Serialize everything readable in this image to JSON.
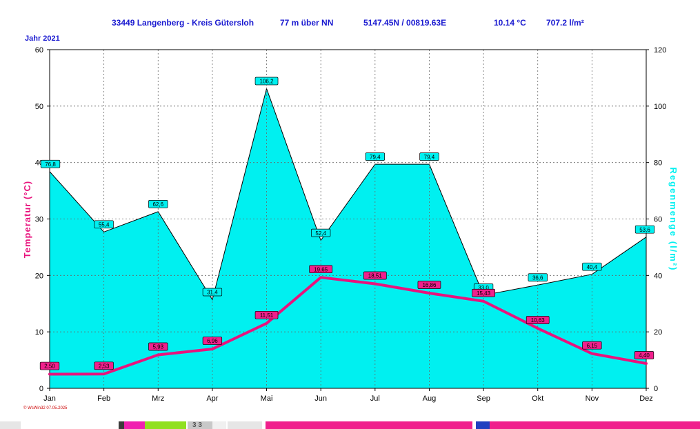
{
  "header": {
    "station": "33449 Langenberg - Kreis Gütersloh",
    "elevation": "77 m über NN",
    "coords": "5147.45N / 00819.63E",
    "avg_temp": "10.14 °C",
    "total_rain": "707.2 l/m²"
  },
  "year_label": "Jahr  2021",
  "footer_text": "© WsWin32  07.05.2025",
  "strip_text": "3 3",
  "chart_data": {
    "type": "line",
    "categories": [
      "Jan",
      "Feb",
      "Mrz",
      "Apr",
      "Mai",
      "Jun",
      "Jul",
      "Aug",
      "Sep",
      "Okt",
      "Nov",
      "Dez"
    ],
    "y_left": {
      "label": "Temperatur  (°C)",
      "range": [
        0,
        60
      ],
      "ticks": [
        0,
        10,
        20,
        30,
        40,
        50,
        60
      ]
    },
    "y_right": {
      "label": "Regenmenge  (l/m²)",
      "range": [
        0,
        120
      ],
      "ticks": [
        0,
        20,
        40,
        60,
        80,
        100,
        120
      ]
    },
    "grid": true,
    "series": [
      {
        "axis": "right",
        "type": "area",
        "color": "#00f0f0",
        "values": [
          76.8,
          55.4,
          62.6,
          31.4,
          106.2,
          52.4,
          79.4,
          79.4,
          33.0,
          36.6,
          40.4,
          53.6
        ],
        "labels": [
          "76,8",
          "55,4",
          "62,6",
          "31,4",
          "106,2",
          "52,4",
          "79,4",
          "79,4",
          "33,0",
          "36,6",
          "40,4",
          "53,6"
        ]
      },
      {
        "axis": "left",
        "type": "line",
        "color": "#e8137d",
        "values": [
          2.5,
          2.53,
          5.93,
          6.96,
          11.51,
          19.65,
          18.51,
          16.86,
          15.43,
          10.63,
          6.15,
          4.4
        ],
        "labels": [
          "2,50",
          "2,53",
          "5,93",
          "6,96",
          "11,51",
          "19,65",
          "18,51",
          "16,86",
          "15,43",
          "10,63",
          "6,15",
          "4,40"
        ]
      }
    ]
  }
}
